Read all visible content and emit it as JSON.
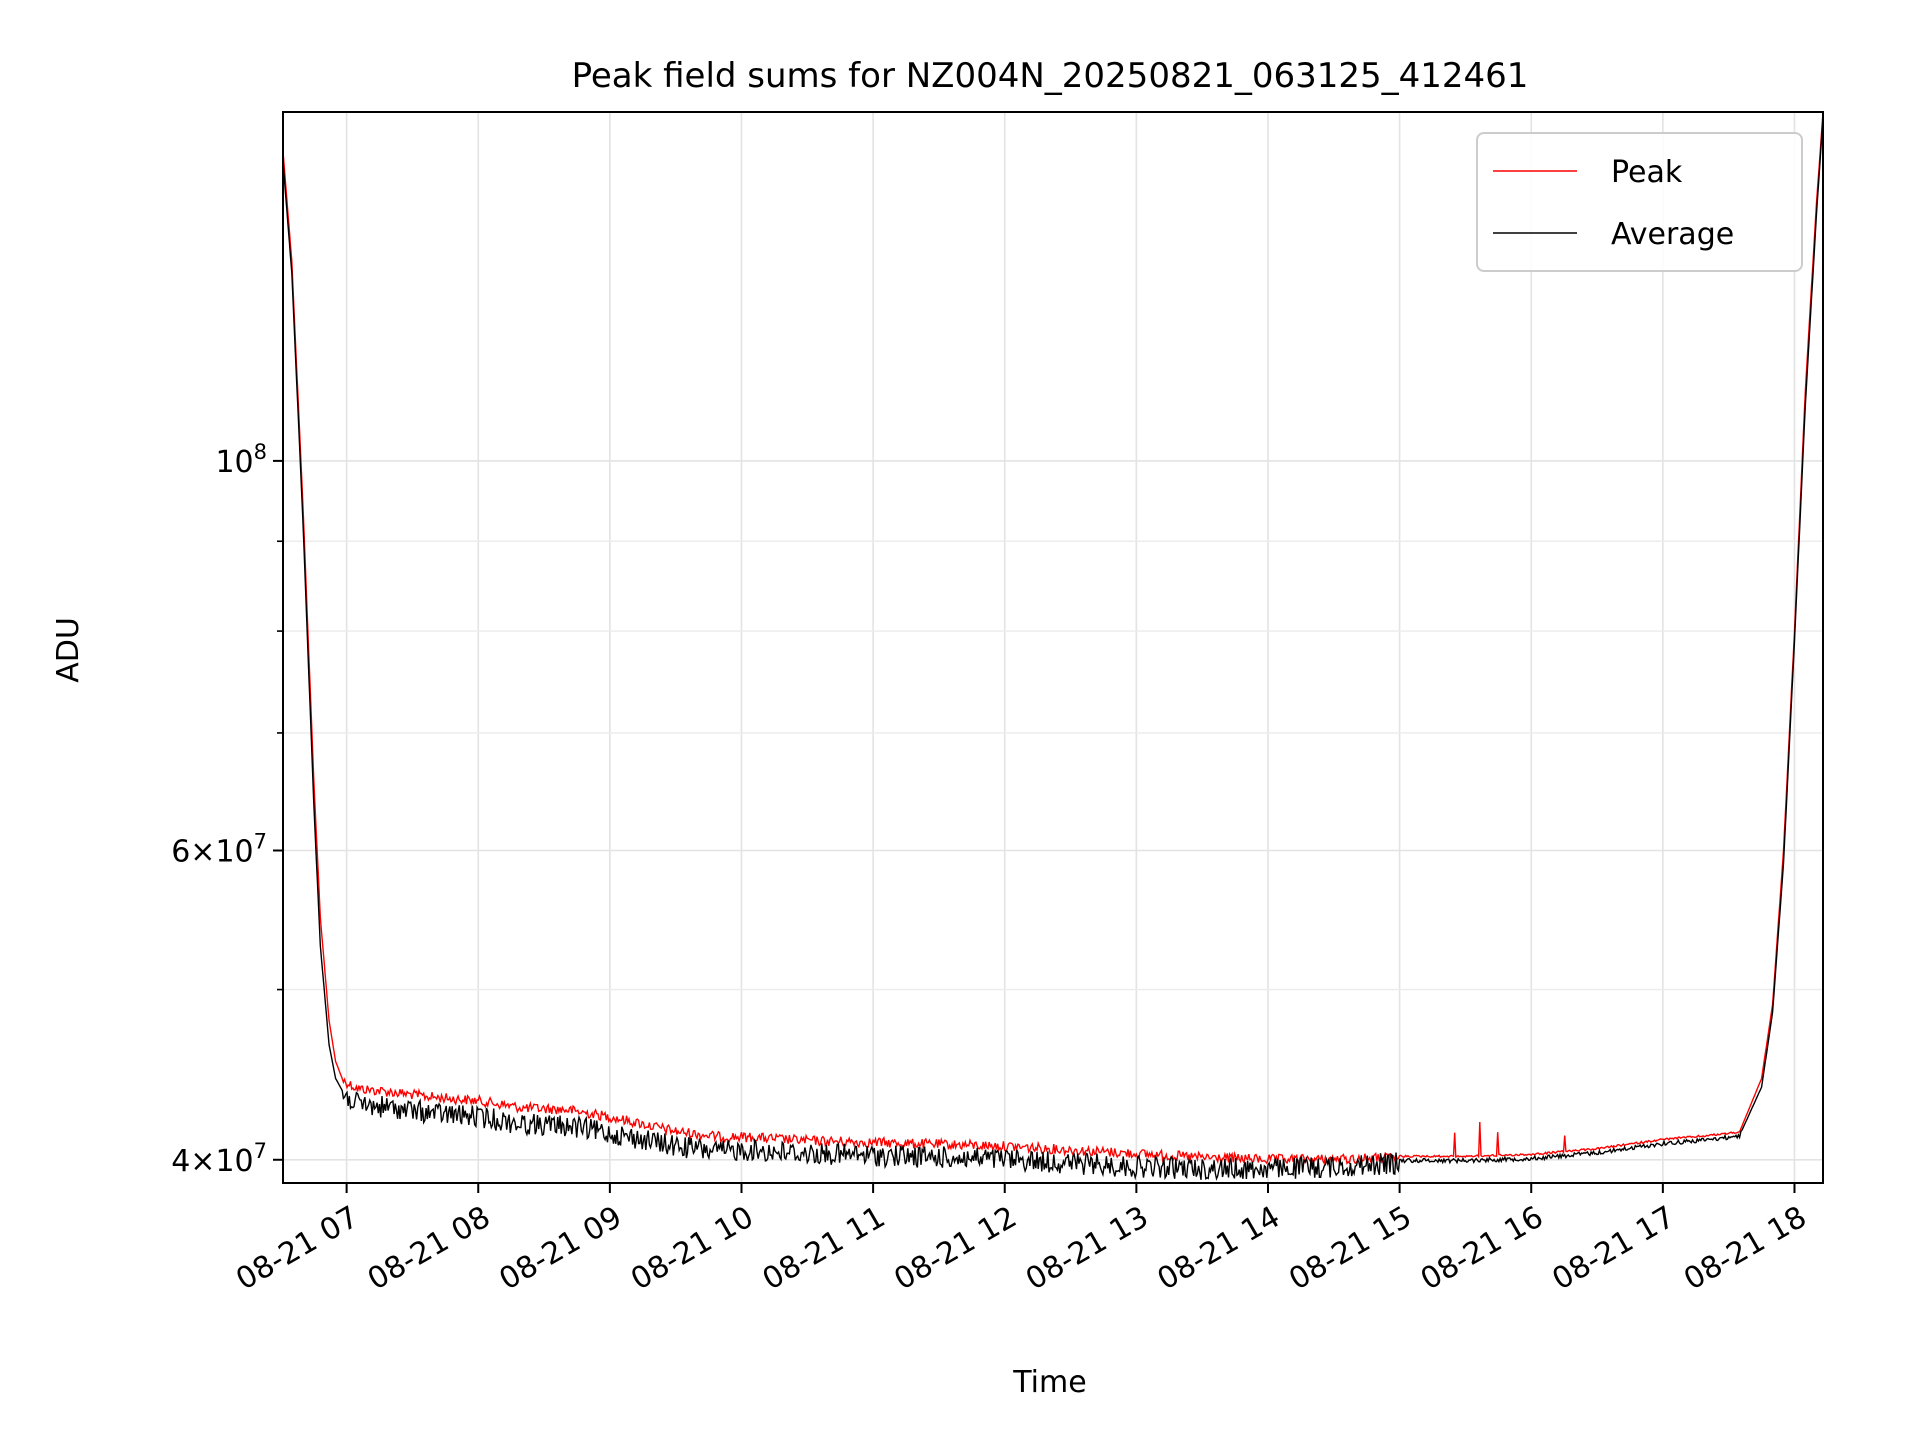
{
  "chart_data": {
    "type": "line",
    "title": "Peak field sums for NZ004N_20250821_063125_412461",
    "xlabel": "Time",
    "ylabel": "ADU",
    "y_scale": "log",
    "ylim": [
      38800000,
      158000000
    ],
    "xlim": [
      "2025-08-21 06:31",
      "2025-08-21 18:13"
    ],
    "x_ticks": [
      {
        "value": "2025-08-21 07:00",
        "label": "08-21 07"
      },
      {
        "value": "2025-08-21 08:00",
        "label": "08-21 08"
      },
      {
        "value": "2025-08-21 09:00",
        "label": "08-21 09"
      },
      {
        "value": "2025-08-21 10:00",
        "label": "08-21 10"
      },
      {
        "value": "2025-08-21 11:00",
        "label": "08-21 11"
      },
      {
        "value": "2025-08-21 12:00",
        "label": "08-21 12"
      },
      {
        "value": "2025-08-21 13:00",
        "label": "08-21 13"
      },
      {
        "value": "2025-08-21 14:00",
        "label": "08-21 14"
      },
      {
        "value": "2025-08-21 15:00",
        "label": "08-21 15"
      },
      {
        "value": "2025-08-21 16:00",
        "label": "08-21 16"
      },
      {
        "value": "2025-08-21 17:00",
        "label": "08-21 17"
      },
      {
        "value": "2025-08-21 18:00",
        "label": "08-21 18"
      }
    ],
    "y_major_ticks": [
      {
        "value": 40000000,
        "base": "4×10",
        "exp": "7"
      },
      {
        "value": 60000000,
        "base": "6×10",
        "exp": "7"
      },
      {
        "value": 100000000,
        "base": "10",
        "exp": "8"
      }
    ],
    "y_minor_grid": [
      50000000,
      70000000,
      80000000,
      90000000
    ],
    "grid": true,
    "legend_position": "top-right",
    "series": [
      {
        "name": "Peak",
        "color": "#ff0000",
        "x": [
          "2025-08-21 06:31",
          "2025-08-21 06:35",
          "2025-08-21 06:40",
          "2025-08-21 06:45",
          "2025-08-21 06:48",
          "2025-08-21 06:52",
          "2025-08-21 06:55",
          "2025-08-21 06:58",
          "2025-08-21 07:05",
          "2025-08-21 07:20",
          "2025-08-21 07:40",
          "2025-08-21 08:00",
          "2025-08-21 08:20",
          "2025-08-21 08:40",
          "2025-08-21 09:00",
          "2025-08-21 09:30",
          "2025-08-21 09:50",
          "2025-08-21 10:00",
          "2025-08-21 10:30",
          "2025-08-21 11:00",
          "2025-08-21 11:30",
          "2025-08-21 12:00",
          "2025-08-21 12:30",
          "2025-08-21 13:00",
          "2025-08-21 13:30",
          "2025-08-21 14:00",
          "2025-08-21 14:30",
          "2025-08-21 15:00",
          "2025-08-21 15:30",
          "2025-08-21 16:00",
          "2025-08-21 16:30",
          "2025-08-21 17:00",
          "2025-08-21 17:20",
          "2025-08-21 17:35",
          "2025-08-21 17:45",
          "2025-08-21 17:50",
          "2025-08-21 17:55",
          "2025-08-21 18:00",
          "2025-08-21 18:05",
          "2025-08-21 18:10",
          "2025-08-21 18:13"
        ],
        "y": [
          150000000,
          130000000,
          95000000,
          66000000,
          55000000,
          48000000,
          45500000,
          44500000,
          44000000,
          43800000,
          43500000,
          43300000,
          42900000,
          42800000,
          42400000,
          41600000,
          41300000,
          41300000,
          41100000,
          41000000,
          40900000,
          40800000,
          40600000,
          40400000,
          40200000,
          40100000,
          40100000,
          40200000,
          40200000,
          40300000,
          40600000,
          41100000,
          41300000,
          41500000,
          44500000,
          49000000,
          60000000,
          80000000,
          110000000,
          140000000,
          158000000
        ]
      },
      {
        "name": "Average",
        "color": "#000000",
        "x": [
          "2025-08-21 06:31",
          "2025-08-21 06:35",
          "2025-08-21 06:40",
          "2025-08-21 06:45",
          "2025-08-21 06:48",
          "2025-08-21 06:52",
          "2025-08-21 06:55",
          "2025-08-21 06:58",
          "2025-08-21 07:05",
          "2025-08-21 07:20",
          "2025-08-21 07:40",
          "2025-08-21 08:00",
          "2025-08-21 08:20",
          "2025-08-21 08:40",
          "2025-08-21 09:00",
          "2025-08-21 09:30",
          "2025-08-21 09:50",
          "2025-08-21 10:00",
          "2025-08-21 10:30",
          "2025-08-21 11:00",
          "2025-08-21 11:30",
          "2025-08-21 12:00",
          "2025-08-21 12:30",
          "2025-08-21 13:00",
          "2025-08-21 13:30",
          "2025-08-21 14:00",
          "2025-08-21 14:30",
          "2025-08-21 15:00",
          "2025-08-21 15:30",
          "2025-08-21 16:00",
          "2025-08-21 16:30",
          "2025-08-21 17:00",
          "2025-08-21 17:20",
          "2025-08-21 17:35",
          "2025-08-21 17:45",
          "2025-08-21 17:50",
          "2025-08-21 17:55",
          "2025-08-21 18:00",
          "2025-08-21 18:05",
          "2025-08-21 18:10",
          "2025-08-21 18:13"
        ],
        "y": [
          148000000,
          128000000,
          93000000,
          64000000,
          53000000,
          46500000,
          44500000,
          43800000,
          43200000,
          43000000,
          42700000,
          42500000,
          42100000,
          42000000,
          41600000,
          40900000,
          40600000,
          40700000,
          40500000,
          40400000,
          40300000,
          40200000,
          40000000,
          39800000,
          39700000,
          39700000,
          39800000,
          40000000,
          40000000,
          40100000,
          40400000,
          40900000,
          41100000,
          41300000,
          44000000,
          48500000,
          59000000,
          79000000,
          108000000,
          138000000,
          157000000
        ]
      }
    ]
  }
}
